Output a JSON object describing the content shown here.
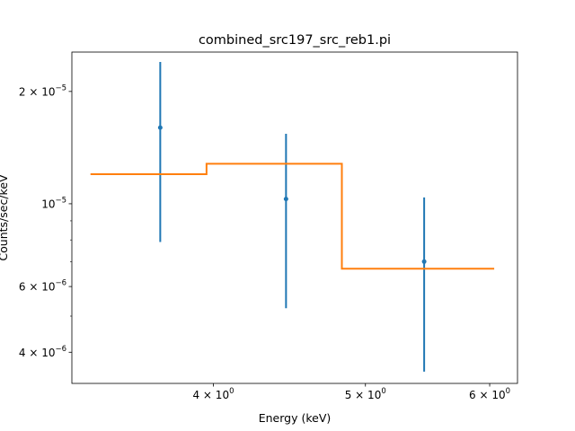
{
  "chart_data": {
    "type": "scatter",
    "title": "combined_src197_src_reb1.pi",
    "xlabel": "Energy (keV)",
    "ylabel": "Counts/sec/keV",
    "xscale": "log",
    "yscale": "log",
    "xlim": [
      3.25,
      6.25
    ],
    "ylim": [
      3.3e-06,
      2.55e-05
    ],
    "grid": false,
    "legend": "none",
    "x_ticks": [
      {
        "value": 4,
        "base": "4 × 10",
        "exp": "0"
      },
      {
        "value": 5,
        "base": "5 × 10",
        "exp": "0"
      },
      {
        "value": 6,
        "base": "6 × 10",
        "exp": "0"
      }
    ],
    "y_ticks": [
      {
        "value": 4e-06,
        "base": "4 × 10",
        "exp": "−6"
      },
      {
        "value": 6e-06,
        "base": "6 × 10",
        "exp": "−6"
      },
      {
        "value": 1e-05,
        "base": "10",
        "exp": "−5"
      },
      {
        "value": 2e-05,
        "base": "2 × 10",
        "exp": "−5"
      }
    ],
    "y_minor_ticks": [
      3e-06,
      5e-06,
      7e-06,
      8e-06,
      9e-06
    ],
    "x_minor_ticks": [],
    "series": [
      {
        "kind": "errorbar",
        "color": "#1f77b4",
        "points": [
          {
            "x": 3.7,
            "y": 1.6e-05,
            "ylo": 7.9e-06,
            "yhi": 2.4e-05
          },
          {
            "x": 4.45,
            "y": 1.03e-05,
            "ylo": 5.25e-06,
            "yhi": 1.54e-05
          },
          {
            "x": 5.45,
            "y": 7e-06,
            "ylo": 3.55e-06,
            "yhi": 1.04e-05
          }
        ]
      },
      {
        "kind": "step",
        "color": "#ff7f0e",
        "segments": [
          {
            "x0": 3.34,
            "x1": 3.96,
            "y": 1.2e-05
          },
          {
            "x0": 3.96,
            "x1": 4.83,
            "y": 1.28e-05
          },
          {
            "x0": 4.83,
            "x1": 6.04,
            "y": 6.7e-06
          }
        ]
      }
    ]
  }
}
